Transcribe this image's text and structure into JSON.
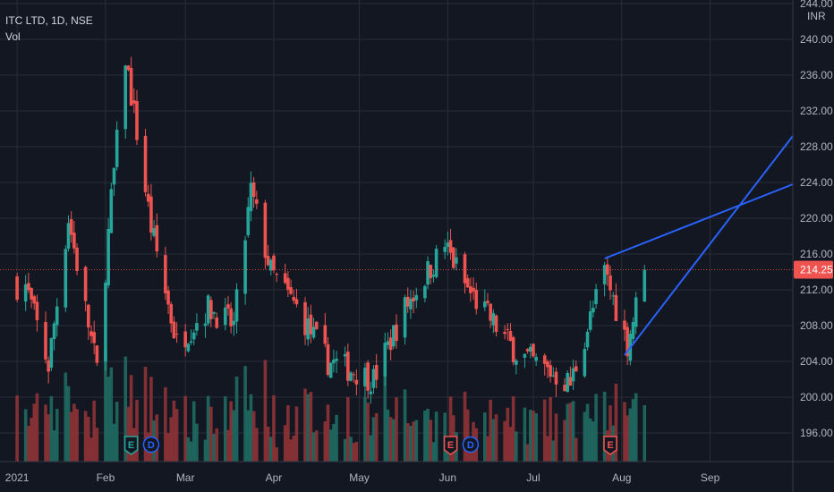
{
  "legend": {
    "symbol": "ITC LTD, 1D, NSE",
    "indicator": "Vol"
  },
  "currency": "INR",
  "current_price": "214.25",
  "colors": {
    "background": "#131722",
    "grid": "#2a2e39",
    "up": "#26a69a",
    "down": "#ef5350",
    "up_vol": "#1f6b63",
    "down_vol": "#8f3336",
    "trendline": "#2962ff",
    "price_tag": "#ef5350",
    "axis_text": "#b2b5be"
  },
  "chart_data": {
    "type": "candlestick",
    "title": "ITC LTD, 1D, NSE",
    "y_axis": {
      "ticks": [
        "244.00",
        "240.00",
        "236.00",
        "232.00",
        "228.00",
        "224.00",
        "220.00",
        "216.00",
        "212.00",
        "208.00",
        "204.00",
        "200.00",
        "196.00"
      ],
      "ylim": [
        192,
        244
      ],
      "unit": "INR"
    },
    "x_axis": {
      "labels": [
        "2021",
        "Feb",
        "Mar",
        "Apr",
        "May",
        "Jun",
        "Jul",
        "Aug",
        "Sep"
      ],
      "dates": [
        "2021-01-01",
        "2021-02-01",
        "2021-03-01",
        "2021-04-01",
        "2021-05-01",
        "2021-06-01",
        "2021-07-01",
        "2021-08-01",
        "2021-09-01"
      ],
      "xlim": [
        "2020-12-26",
        "2021-09-30"
      ]
    },
    "grid": true,
    "volume_indicator": "Vol",
    "events": [
      {
        "type": "earnings",
        "label": "E",
        "date": "2021-02-10",
        "color": "#26a69a"
      },
      {
        "type": "dividend",
        "label": "D",
        "date": "2021-02-17",
        "color": "#2962ff"
      },
      {
        "type": "earnings",
        "label": "E",
        "date": "2021-06-02",
        "color": "#ef5350"
      },
      {
        "type": "dividend",
        "label": "D",
        "date": "2021-06-09",
        "color": "#2962ff"
      },
      {
        "type": "earnings",
        "label": "E",
        "date": "2021-07-28",
        "color": "#ef5350"
      }
    ],
    "trendlines": [
      {
        "from": {
          "date": "2021-07-26",
          "price": 215.5
        },
        "to": {
          "date": "2021-09-30",
          "price": 223.8
        }
      },
      {
        "from": {
          "date": "2021-08-02",
          "price": 204.7
        },
        "to": {
          "date": "2021-09-30",
          "price": 229.2
        }
      }
    ],
    "key_prices": [
      {
        "date": "2021-01-04",
        "close": 212.5
      },
      {
        "date": "2021-01-12",
        "close": 203.5
      },
      {
        "date": "2021-01-19",
        "close": 220.0
      },
      {
        "date": "2021-01-29",
        "close": 203.0
      },
      {
        "date": "2021-02-03",
        "close": 222.0
      },
      {
        "date": "2021-02-08",
        "close": 238.0
      },
      {
        "date": "2021-02-17",
        "close": 219.0
      },
      {
        "date": "2021-02-26",
        "close": 206.0
      },
      {
        "date": "2021-03-09",
        "close": 210.0
      },
      {
        "date": "2021-03-18",
        "close": 208.0
      },
      {
        "date": "2021-03-24",
        "close": 223.0
      },
      {
        "date": "2021-03-31",
        "close": 214.0
      },
      {
        "date": "2021-04-09",
        "close": 210.0
      },
      {
        "date": "2021-04-20",
        "close": 204.0
      },
      {
        "date": "2021-04-29",
        "close": 203.0
      },
      {
        "date": "2021-05-06",
        "close": 202.0
      },
      {
        "date": "2021-05-17",
        "close": 210.0
      },
      {
        "date": "2021-05-31",
        "close": 217.0
      },
      {
        "date": "2021-06-08",
        "close": 212.0
      },
      {
        "date": "2021-06-25",
        "close": 205.0
      },
      {
        "date": "2021-07-14",
        "close": 201.5
      },
      {
        "date": "2021-07-26",
        "close": 214.0
      },
      {
        "date": "2021-08-03",
        "close": 206.0
      },
      {
        "date": "2021-08-09",
        "close": 214.25
      }
    ]
  }
}
